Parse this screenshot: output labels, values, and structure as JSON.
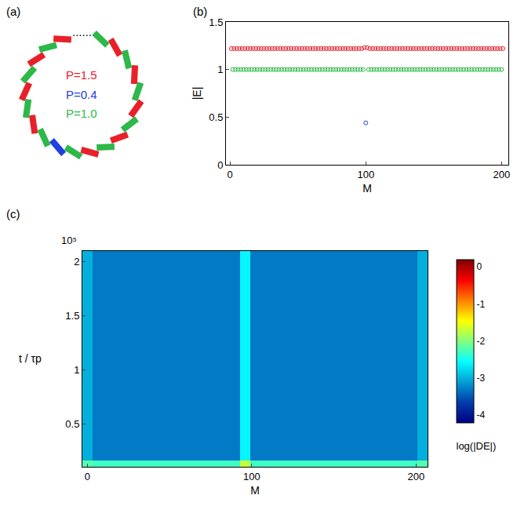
{
  "schematic": {
    "panel": "(a)",
    "ellipsis": "......",
    "labels": [
      {
        "text": "P=1.5",
        "color": "#e8202a"
      },
      {
        "text": "P=0.4",
        "color": "#2040e0"
      },
      {
        "text": "P=1.0",
        "color": "#2db84a"
      }
    ]
  },
  "chart_data": [
    {
      "panel": "(b)",
      "type": "scatter",
      "xlabel": "M",
      "ylabel": "|E|",
      "xlim": [
        -3,
        205
      ],
      "xticks": [
        0,
        100,
        200
      ],
      "ylim": [
        0,
        1.5
      ],
      "yticks": [
        0,
        0.5,
        1,
        1.5
      ],
      "series": [
        {
          "color": "#e8202a",
          "marker": "open circle",
          "x": [
            1,
            3,
            5,
            7,
            9,
            11,
            13,
            15,
            17,
            19,
            21,
            23,
            25,
            27,
            29,
            31,
            33,
            35,
            37,
            39,
            41,
            43,
            45,
            47,
            49,
            51,
            53,
            55,
            57,
            59,
            61,
            63,
            65,
            67,
            69,
            71,
            73,
            75,
            77,
            79,
            81,
            83,
            85,
            87,
            89,
            91,
            93,
            95,
            97,
            99,
            101,
            103,
            105,
            107,
            109,
            111,
            113,
            115,
            117,
            119,
            121,
            123,
            125,
            127,
            129,
            131,
            133,
            135,
            137,
            139,
            141,
            143,
            145,
            147,
            149,
            151,
            153,
            155,
            157,
            159,
            161,
            163,
            165,
            167,
            169,
            171,
            173,
            175,
            177,
            179,
            181,
            183,
            185,
            187,
            189,
            191,
            193,
            195,
            197,
            199,
            201
          ],
          "values": [
            1.22,
            1.22,
            1.22,
            1.22,
            1.22,
            1.22,
            1.22,
            1.22,
            1.22,
            1.22,
            1.22,
            1.22,
            1.22,
            1.22,
            1.22,
            1.22,
            1.22,
            1.22,
            1.22,
            1.22,
            1.22,
            1.22,
            1.22,
            1.22,
            1.22,
            1.22,
            1.22,
            1.22,
            1.22,
            1.22,
            1.22,
            1.22,
            1.22,
            1.22,
            1.22,
            1.22,
            1.22,
            1.22,
            1.22,
            1.22,
            1.22,
            1.22,
            1.22,
            1.22,
            1.22,
            1.22,
            1.22,
            1.22,
            1.22,
            1.23,
            1.23,
            1.22,
            1.22,
            1.22,
            1.22,
            1.22,
            1.22,
            1.22,
            1.22,
            1.22,
            1.22,
            1.22,
            1.22,
            1.22,
            1.22,
            1.22,
            1.22,
            1.22,
            1.22,
            1.22,
            1.22,
            1.22,
            1.22,
            1.22,
            1.22,
            1.22,
            1.22,
            1.22,
            1.22,
            1.22,
            1.22,
            1.22,
            1.22,
            1.22,
            1.22,
            1.22,
            1.22,
            1.22,
            1.22,
            1.22,
            1.22,
            1.22,
            1.22,
            1.22,
            1.22,
            1.22,
            1.22,
            1.22,
            1.22,
            1.22,
            1.22
          ]
        },
        {
          "color": "#2db84a",
          "marker": "open circle",
          "x": [
            2,
            4,
            6,
            8,
            10,
            12,
            14,
            16,
            18,
            20,
            22,
            24,
            26,
            28,
            30,
            32,
            34,
            36,
            38,
            40,
            42,
            44,
            46,
            48,
            50,
            52,
            54,
            56,
            58,
            60,
            62,
            64,
            66,
            68,
            70,
            72,
            74,
            76,
            78,
            80,
            82,
            84,
            86,
            88,
            90,
            92,
            94,
            96,
            98,
            102,
            104,
            106,
            108,
            110,
            112,
            114,
            116,
            118,
            120,
            122,
            124,
            126,
            128,
            130,
            132,
            134,
            136,
            138,
            140,
            142,
            144,
            146,
            148,
            150,
            152,
            154,
            156,
            158,
            160,
            162,
            164,
            166,
            168,
            170,
            172,
            174,
            176,
            178,
            180,
            182,
            184,
            186,
            188,
            190,
            192,
            194,
            196,
            198,
            200
          ],
          "values": [
            1,
            1,
            1,
            1,
            1,
            1,
            1,
            1,
            1,
            1,
            1,
            1,
            1,
            1,
            1,
            1,
            1,
            1,
            1,
            1,
            1,
            1,
            1,
            1,
            1,
            1,
            1,
            1,
            1,
            1,
            1,
            1,
            1,
            1,
            1,
            1,
            1,
            1,
            1,
            1,
            1,
            1,
            1,
            1,
            1,
            1,
            1,
            1,
            1,
            1,
            1,
            1,
            1,
            1,
            1,
            1,
            1,
            1,
            1,
            1,
            1,
            1,
            1,
            1,
            1,
            1,
            1,
            1,
            1,
            1,
            1,
            1,
            1,
            1,
            1,
            1,
            1,
            1,
            1,
            1,
            1,
            1,
            1,
            1,
            1,
            1,
            1,
            1,
            1,
            1,
            1,
            1,
            1,
            1,
            1,
            1,
            1,
            1,
            1
          ]
        },
        {
          "color": "#2040e0",
          "marker": "open circle",
          "x": [
            100
          ],
          "values": [
            0.44
          ]
        }
      ]
    },
    {
      "panel": "(c)",
      "type": "heatmap",
      "xlabel": "M",
      "ylabel": "t / τp",
      "y_multiplier": "10⁵",
      "xlim": [
        -3,
        207
      ],
      "xticks": [
        0,
        100,
        200
      ],
      "ylim": [
        0.1,
        2.1
      ],
      "yticks": [
        0.5,
        1,
        1.5,
        2
      ],
      "zlabel": "log(|DE|)",
      "zlim": [
        -4.2,
        0.2
      ],
      "zticks": [
        -4,
        -3,
        -2,
        -1,
        0
      ],
      "x": [
        0,
        6,
        12,
        18,
        24,
        30,
        36,
        42,
        48,
        54,
        60,
        66,
        72,
        78,
        84,
        90,
        96,
        102,
        108,
        114,
        120,
        126,
        132,
        138,
        144,
        150,
        156,
        162,
        168,
        174,
        180,
        186,
        192,
        198,
        204
      ],
      "t": [
        0.12,
        0.2,
        0.4,
        0.6,
        0.8,
        1.0,
        1.2,
        1.4,
        1.6,
        1.8,
        2.0
      ],
      "z": [
        [
          -2.2,
          -2.3,
          -2.3,
          -2.3,
          -2.3,
          -2.3,
          -2.3,
          -2.3,
          -2.3,
          -2.3,
          -2.3,
          -2.3,
          -2.3,
          -2.3,
          -2.3,
          -2.3,
          -1.7,
          -2.3,
          -2.3,
          -2.3,
          -2.3,
          -2.3,
          -2.3,
          -2.3,
          -2.3,
          -2.3,
          -2.3,
          -2.3,
          -2.3,
          -2.3,
          -2.3,
          -2.3,
          -2.3,
          -2.3,
          -2.2
        ],
        [
          -3,
          -3.3,
          -3.3,
          -3.3,
          -3.3,
          -3.3,
          -3.3,
          -3.3,
          -3.3,
          -3.3,
          -3.3,
          -3.3,
          -3.3,
          -3.3,
          -3.3,
          -3.3,
          -2.6,
          -3.3,
          -3.3,
          -3.3,
          -3.3,
          -3.3,
          -3.3,
          -3.3,
          -3.3,
          -3.3,
          -3.3,
          -3.3,
          -3.3,
          -3.3,
          -3.3,
          -3.3,
          -3.3,
          -3.3,
          -3
        ],
        [
          -3,
          -3.3,
          -3.3,
          -3.3,
          -3.3,
          -3.3,
          -3.3,
          -3.3,
          -3.3,
          -3.3,
          -3.3,
          -3.3,
          -3.3,
          -3.3,
          -3.3,
          -3.3,
          -2.6,
          -3.3,
          -3.3,
          -3.3,
          -3.3,
          -3.3,
          -3.3,
          -3.3,
          -3.3,
          -3.3,
          -3.3,
          -3.3,
          -3.3,
          -3.3,
          -3.3,
          -3.3,
          -3.3,
          -3.3,
          -3
        ],
        [
          -3,
          -3.3,
          -3.3,
          -3.3,
          -3.3,
          -3.3,
          -3.3,
          -3.3,
          -3.3,
          -3.3,
          -3.3,
          -3.3,
          -3.3,
          -3.3,
          -3.3,
          -3.3,
          -2.6,
          -3.3,
          -3.3,
          -3.3,
          -3.3,
          -3.3,
          -3.3,
          -3.3,
          -3.3,
          -3.3,
          -3.3,
          -3.3,
          -3.3,
          -3.3,
          -3.3,
          -3.3,
          -3.3,
          -3.3,
          -3
        ],
        [
          -3,
          -3.3,
          -3.3,
          -3.3,
          -3.3,
          -3.3,
          -3.3,
          -3.3,
          -3.3,
          -3.3,
          -3.3,
          -3.3,
          -3.3,
          -3.3,
          -3.3,
          -3.3,
          -2.6,
          -3.3,
          -3.3,
          -3.3,
          -3.3,
          -3.3,
          -3.3,
          -3.3,
          -3.3,
          -3.3,
          -3.3,
          -3.3,
          -3.3,
          -3.3,
          -3.3,
          -3.3,
          -3.3,
          -3.3,
          -3
        ],
        [
          -3,
          -3.3,
          -3.3,
          -3.3,
          -3.3,
          -3.3,
          -3.3,
          -3.3,
          -3.3,
          -3.3,
          -3.3,
          -3.3,
          -3.3,
          -3.3,
          -3.3,
          -3.3,
          -2.6,
          -3.3,
          -3.3,
          -3.3,
          -3.3,
          -3.3,
          -3.3,
          -3.3,
          -3.3,
          -3.3,
          -3.3,
          -3.3,
          -3.3,
          -3.3,
          -3.3,
          -3.3,
          -3.3,
          -3.3,
          -3
        ],
        [
          -3,
          -3.3,
          -3.3,
          -3.3,
          -3.3,
          -3.3,
          -3.3,
          -3.3,
          -3.3,
          -3.3,
          -3.3,
          -3.3,
          -3.3,
          -3.3,
          -3.3,
          -3.3,
          -2.6,
          -3.3,
          -3.3,
          -3.3,
          -3.3,
          -3.3,
          -3.3,
          -3.3,
          -3.3,
          -3.3,
          -3.3,
          -3.3,
          -3.3,
          -3.3,
          -3.3,
          -3.3,
          -3.3,
          -3.3,
          -3
        ],
        [
          -3,
          -3.3,
          -3.3,
          -3.3,
          -3.3,
          -3.3,
          -3.3,
          -3.3,
          -3.3,
          -3.3,
          -3.3,
          -3.3,
          -3.3,
          -3.3,
          -3.3,
          -3.3,
          -2.6,
          -3.3,
          -3.3,
          -3.3,
          -3.3,
          -3.3,
          -3.3,
          -3.3,
          -3.3,
          -3.3,
          -3.3,
          -3.3,
          -3.3,
          -3.3,
          -3.3,
          -3.3,
          -3.3,
          -3.3,
          -3
        ],
        [
          -3,
          -3.3,
          -3.3,
          -3.3,
          -3.3,
          -3.3,
          -3.3,
          -3.3,
          -3.3,
          -3.3,
          -3.3,
          -3.3,
          -3.3,
          -3.3,
          -3.3,
          -3.3,
          -2.6,
          -3.3,
          -3.3,
          -3.3,
          -3.3,
          -3.3,
          -3.3,
          -3.3,
          -3.3,
          -3.3,
          -3.3,
          -3.3,
          -3.3,
          -3.3,
          -3.3,
          -3.3,
          -3.3,
          -3.3,
          -3
        ],
        [
          -3,
          -3.3,
          -3.3,
          -3.3,
          -3.3,
          -3.3,
          -3.3,
          -3.3,
          -3.3,
          -3.3,
          -3.3,
          -3.3,
          -3.3,
          -3.3,
          -3.3,
          -3.3,
          -2.6,
          -3.3,
          -3.3,
          -3.3,
          -3.3,
          -3.3,
          -3.3,
          -3.3,
          -3.3,
          -3.3,
          -3.3,
          -3.3,
          -3.3,
          -3.3,
          -3.3,
          -3.3,
          -3.3,
          -3.3,
          -3
        ],
        [
          -3,
          -3.3,
          -3.3,
          -3.3,
          -3.3,
          -3.3,
          -3.3,
          -3.3,
          -3.3,
          -3.3,
          -3.3,
          -3.3,
          -3.3,
          -3.3,
          -3.3,
          -3.3,
          -2.6,
          -3.3,
          -3.3,
          -3.3,
          -3.3,
          -3.3,
          -3.3,
          -3.3,
          -3.3,
          -3.3,
          -3.3,
          -3.3,
          -3.3,
          -3.3,
          -3.3,
          -3.3,
          -3.3,
          -3.3,
          -3
        ]
      ]
    }
  ]
}
